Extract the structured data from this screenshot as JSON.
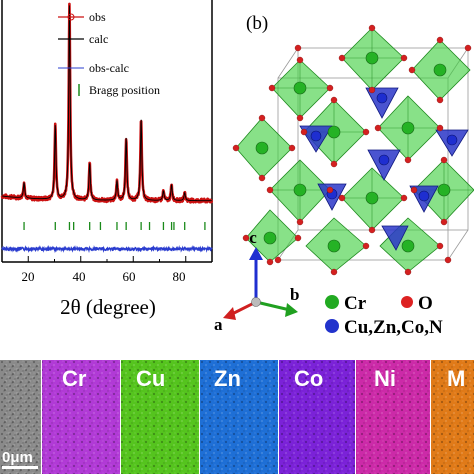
{
  "panel_b_label": "(b)",
  "xrd": {
    "legend": [
      {
        "label": "obs",
        "color": "#cc1111"
      },
      {
        "label": "calc",
        "color": "#000000"
      },
      {
        "label": "obs-calc",
        "color": "#2a3ccf"
      },
      {
        "label": "Bragg position",
        "color": "#1a8a1a"
      }
    ],
    "x_ticks": [
      "20",
      "40",
      "60",
      "80"
    ],
    "x_axis_label": "2θ (degree)"
  },
  "structure": {
    "axes": {
      "c": "c",
      "b": "b",
      "a": "a"
    },
    "legend": [
      {
        "label": "Cr",
        "color": "#22aa22"
      },
      {
        "label": "O",
        "color": "#dd2222"
      },
      {
        "label": "Cu,Zn,Co,N",
        "color": "#2233cc"
      }
    ]
  },
  "eds_maps": {
    "scale_bar": "0μm",
    "tiles": [
      {
        "label": "",
        "color": "#8a8a8a"
      },
      {
        "label": "Cr",
        "color": "#b13ad6"
      },
      {
        "label": "Cu",
        "color": "#55c41e"
      },
      {
        "label": "Zn",
        "color": "#1e6fd6"
      },
      {
        "label": "Co",
        "color": "#7b22d8"
      },
      {
        "label": "Ni",
        "color": "#cc2aa8"
      },
      {
        "label": "M",
        "color": "#e07a18"
      }
    ]
  },
  "chart_data": {
    "type": "line",
    "xlabel": "2θ (degree)",
    "xlim": [
      10,
      90
    ],
    "x_ticks": [
      20,
      40,
      60,
      80
    ],
    "peaks": [
      {
        "x": 18.4,
        "y": 8
      },
      {
        "x": 30.3,
        "y": 38
      },
      {
        "x": 35.7,
        "y": 100
      },
      {
        "x": 43.4,
        "y": 19
      },
      {
        "x": 53.8,
        "y": 10
      },
      {
        "x": 57.3,
        "y": 32
      },
      {
        "x": 63.0,
        "y": 42
      },
      {
        "x": 71.5,
        "y": 5
      },
      {
        "x": 74.6,
        "y": 8
      },
      {
        "x": 79.6,
        "y": 4
      }
    ],
    "bragg_positions": [
      18.4,
      30.3,
      35.7,
      37.3,
      43.4,
      47.5,
      53.8,
      57.3,
      63.0,
      66.2,
      71.5,
      74.6,
      75.5,
      79.6,
      87.3
    ]
  }
}
